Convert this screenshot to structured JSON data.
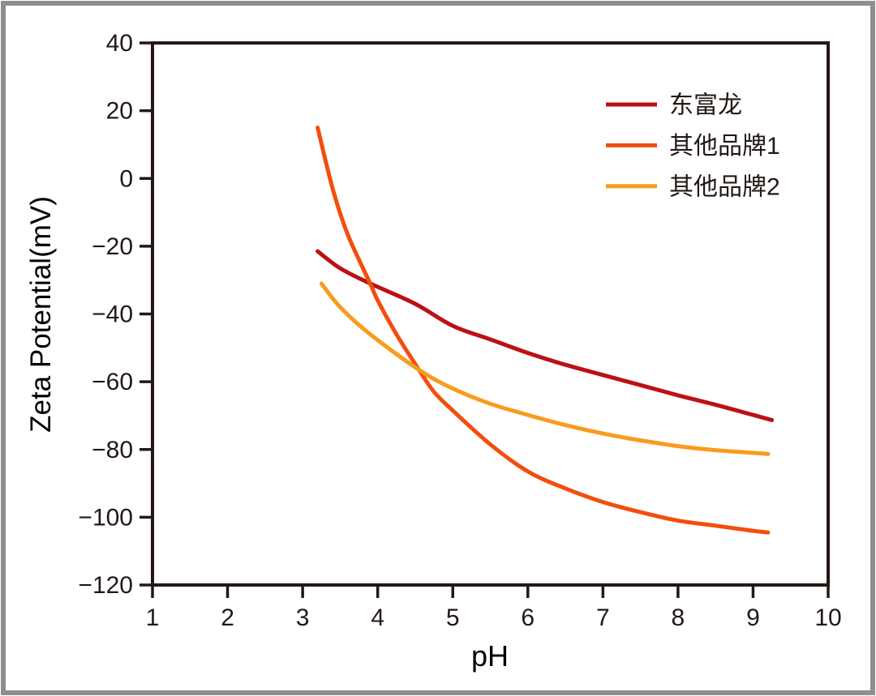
{
  "page": {
    "background": "#ffffff",
    "outer_border_color": "#8f8f8f"
  },
  "chart_data": {
    "type": "line",
    "title": "",
    "xlabel": "pH",
    "ylabel": "Zeta Potential(mV)",
    "xlim": [
      1,
      10
    ],
    "ylim": [
      -120,
      40
    ],
    "xticks": [
      1,
      2,
      3,
      4,
      5,
      6,
      7,
      8,
      9,
      10
    ],
    "yticks": [
      40,
      20,
      0,
      -20,
      -40,
      -60,
      -80,
      -100,
      -120
    ],
    "grid": false,
    "legend_position": "top-right",
    "axis_color": "#231815",
    "text_color": "#231815",
    "line_width": 5,
    "series": [
      {
        "name": "东富龙",
        "color": "#bc1114",
        "x": [
          3.2,
          3.5,
          3.9,
          4.5,
          5.0,
          5.5,
          6.0,
          6.5,
          7.0,
          7.5,
          8.0,
          8.5,
          9.0,
          9.25
        ],
        "y": [
          -21.5,
          -26.5,
          -31.0,
          -37.0,
          -43.5,
          -47.5,
          -51.5,
          -55.0,
          -58.0,
          -61.0,
          -64.0,
          -66.8,
          -69.8,
          -71.3
        ]
      },
      {
        "name": "其他品牌1",
        "color": "#f34e0d",
        "x": [
          3.2,
          3.4,
          3.6,
          3.9,
          4.0,
          4.25,
          4.55,
          4.75,
          5.0,
          5.5,
          6.0,
          6.5,
          7.0,
          7.5,
          8.0,
          8.5,
          9.0,
          9.2
        ],
        "y": [
          15.0,
          -3.0,
          -16.5,
          -31.0,
          -36.0,
          -46.0,
          -56.5,
          -63.0,
          -68.5,
          -78.5,
          -86.5,
          -91.5,
          -95.5,
          -98.5,
          -101.0,
          -102.5,
          -104.0,
          -104.5
        ]
      },
      {
        "name": "其他品牌2",
        "color": "#f79c1e",
        "x": [
          3.25,
          3.5,
          3.9,
          4.55,
          5.0,
          5.5,
          6.0,
          6.5,
          7.0,
          7.5,
          8.0,
          8.5,
          9.0,
          9.2
        ],
        "y": [
          -31.0,
          -38.0,
          -46.0,
          -56.5,
          -62.0,
          -66.5,
          -69.8,
          -72.8,
          -75.3,
          -77.3,
          -79.0,
          -80.2,
          -81.0,
          -81.3
        ]
      }
    ]
  }
}
